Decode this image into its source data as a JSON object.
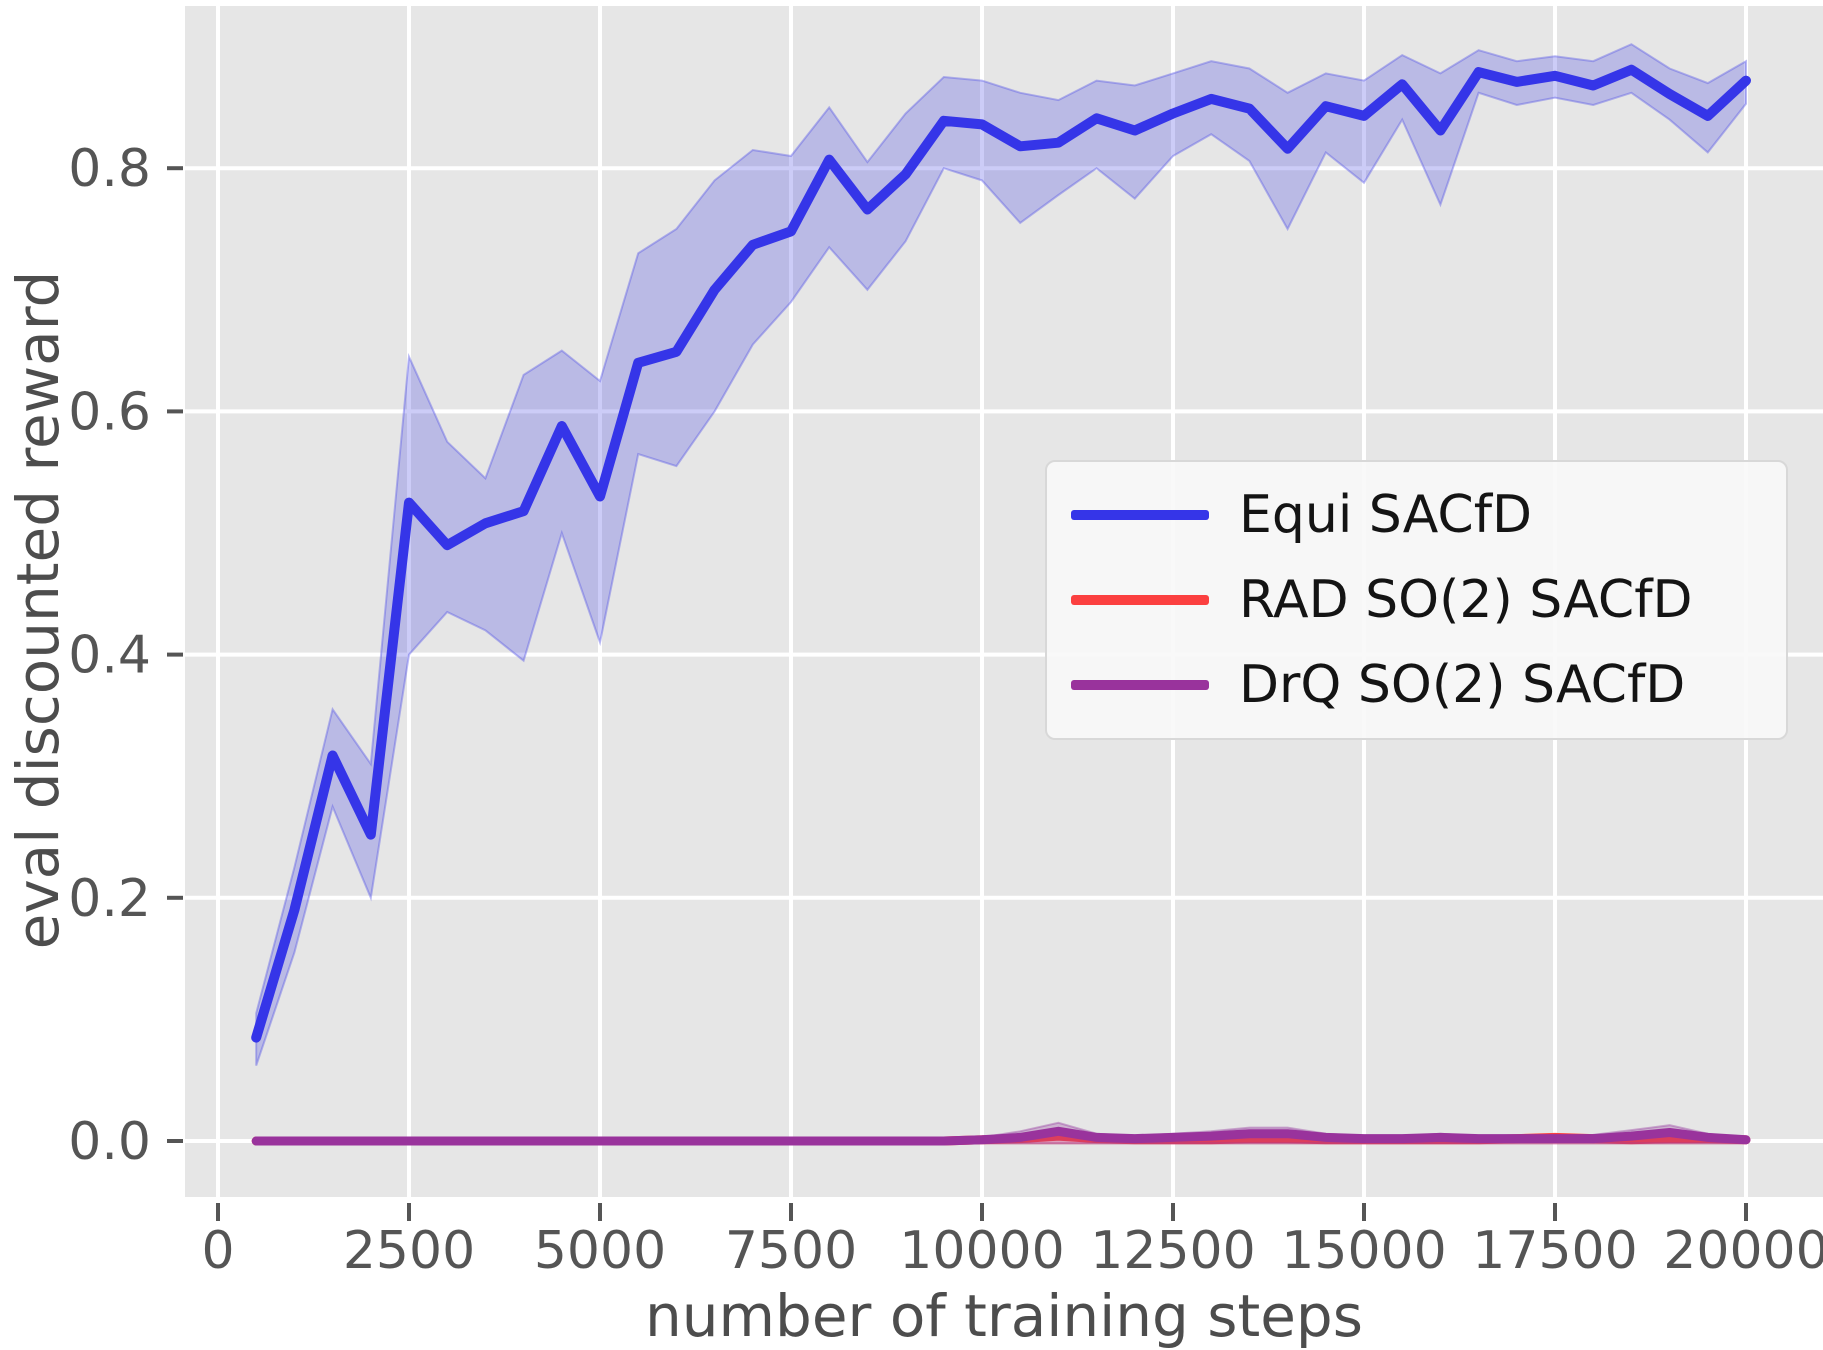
{
  "axes": {
    "xlabel": "number of training steps",
    "ylabel": "eval discounted reward",
    "xticks": {
      "values": [
        0,
        2500,
        5000,
        7500,
        10000,
        12500,
        15000,
        17500,
        20000
      ],
      "labels": [
        "0",
        "2500",
        "5000",
        "7500",
        "10000",
        "12500",
        "15000",
        "17500",
        "20000"
      ]
    },
    "yticks": {
      "values": [
        0.0,
        0.2,
        0.4,
        0.6,
        0.8
      ],
      "labels": [
        "0.0",
        "0.2",
        "0.4",
        "0.6",
        "0.8"
      ]
    }
  },
  "legend": {
    "items": [
      {
        "label": "Equi SACfD"
      },
      {
        "label": "RAD SO(2) SACfD"
      },
      {
        "label": "DrQ SO(2) SACfD"
      }
    ]
  },
  "colors": {
    "figure_bg": "#ffffff",
    "plot_bg": "#e6e6e6",
    "grid": "#ffffff",
    "tick": "#555555",
    "tick_label": "#555555",
    "axis_label": "#4d4d4d",
    "legend_bg": "#f9f9f9",
    "legend_border": "#d8d8d8",
    "legend_text": "#141414"
  },
  "chart_data": {
    "type": "line",
    "title": "",
    "xlabel": "number of training steps",
    "ylabel": "eval discounted reward",
    "xlim": [
      -430,
      21010
    ],
    "ylim": [
      -0.046,
      0.933
    ],
    "grid": true,
    "legend_position": "center-right",
    "x": [
      500,
      1000,
      1500,
      2000,
      2500,
      3000,
      3500,
      4000,
      4500,
      5000,
      5500,
      6000,
      6500,
      7000,
      7500,
      8000,
      8500,
      9000,
      9500,
      10000,
      10500,
      11000,
      11500,
      12000,
      12500,
      13000,
      13500,
      14000,
      14500,
      15000,
      15500,
      16000,
      16500,
      17000,
      17500,
      18000,
      18500,
      19000,
      19500,
      20000
    ],
    "series": [
      {
        "name": "Equi SACfD",
        "color": "#3535e8",
        "band_fill": "rgba(85,85,230,0.30)",
        "band_edge": "rgba(85,85,230,0.40)",
        "line_width": 10,
        "values": [
          0.085,
          0.19,
          0.317,
          0.252,
          0.525,
          0.49,
          0.508,
          0.518,
          0.588,
          0.53,
          0.64,
          0.649,
          0.7,
          0.737,
          0.748,
          0.807,
          0.766,
          0.795,
          0.839,
          0.836,
          0.818,
          0.821,
          0.841,
          0.831,
          0.845,
          0.857,
          0.849,
          0.816,
          0.851,
          0.843,
          0.869,
          0.831,
          0.879,
          0.871,
          0.876,
          0.868,
          0.881,
          0.861,
          0.843,
          0.872
        ],
        "band_low": [
          0.062,
          0.155,
          0.275,
          0.2,
          0.4,
          0.435,
          0.42,
          0.395,
          0.5,
          0.41,
          0.565,
          0.555,
          0.6,
          0.655,
          0.69,
          0.735,
          0.7,
          0.74,
          0.8,
          0.79,
          0.755,
          0.778,
          0.8,
          0.775,
          0.81,
          0.828,
          0.806,
          0.75,
          0.813,
          0.788,
          0.84,
          0.77,
          0.862,
          0.852,
          0.858,
          0.852,
          0.862,
          0.84,
          0.813,
          0.853
        ],
        "band_high": [
          0.105,
          0.225,
          0.355,
          0.31,
          0.645,
          0.575,
          0.545,
          0.63,
          0.65,
          0.625,
          0.73,
          0.75,
          0.79,
          0.815,
          0.81,
          0.85,
          0.805,
          0.845,
          0.875,
          0.872,
          0.862,
          0.856,
          0.872,
          0.868,
          0.878,
          0.888,
          0.882,
          0.862,
          0.878,
          0.872,
          0.893,
          0.878,
          0.897,
          0.888,
          0.892,
          0.888,
          0.902,
          0.882,
          0.87,
          0.888
        ]
      },
      {
        "name": "RAD SO(2) SACfD",
        "color": "#fb4040",
        "band_fill": "rgba(250,70,70,0.30)",
        "band_edge": "rgba(250,70,70,0.40)",
        "line_width": 9,
        "values": [
          0,
          0,
          0,
          0,
          0,
          0,
          0,
          0,
          0,
          0,
          0,
          0,
          0,
          0,
          0,
          0,
          0,
          0,
          0,
          0.001,
          0.002,
          0.004,
          0.002,
          0.001,
          0.001,
          0.001,
          0.002,
          0.002,
          0.001,
          0.001,
          0.001,
          0.001,
          0.001,
          0.002,
          0.003,
          0.002,
          0.001,
          0.002,
          0.002,
          0.001
        ],
        "band_low": [
          -0.002,
          -0.002,
          -0.002,
          -0.002,
          -0.002,
          -0.002,
          -0.002,
          -0.002,
          -0.002,
          -0.002,
          -0.002,
          -0.002,
          -0.002,
          -0.002,
          -0.002,
          -0.002,
          -0.002,
          -0.002,
          -0.002,
          -0.002,
          -0.002,
          -0.002,
          -0.002,
          -0.002,
          -0.002,
          -0.002,
          -0.002,
          -0.002,
          -0.002,
          -0.002,
          -0.002,
          -0.002,
          -0.002,
          -0.002,
          -0.002,
          -0.002,
          -0.002,
          -0.002,
          -0.002,
          -0.002
        ],
        "band_high": [
          0.002,
          0.002,
          0.002,
          0.002,
          0.002,
          0.002,
          0.002,
          0.002,
          0.002,
          0.002,
          0.002,
          0.002,
          0.002,
          0.002,
          0.002,
          0.002,
          0.002,
          0.002,
          0.002,
          0.003,
          0.004,
          0.007,
          0.004,
          0.003,
          0.003,
          0.003,
          0.004,
          0.004,
          0.003,
          0.003,
          0.003,
          0.003,
          0.003,
          0.004,
          0.005,
          0.004,
          0.003,
          0.004,
          0.005,
          0.003
        ]
      },
      {
        "name": "DrQ SO(2) SACfD",
        "color": "#99339c",
        "band_fill": "rgba(150,60,160,0.30)",
        "band_edge": "rgba(150,60,160,0.40)",
        "line_width": 9,
        "values": [
          0,
          0,
          0,
          0,
          0,
          0,
          0,
          0,
          0,
          0,
          0,
          0,
          0,
          0,
          0,
          0,
          0,
          0,
          0,
          0.001,
          0.003,
          0.008,
          0.003,
          0.002,
          0.003,
          0.004,
          0.006,
          0.006,
          0.003,
          0.002,
          0.002,
          0.003,
          0.002,
          0.002,
          0.002,
          0.002,
          0.004,
          0.007,
          0.003,
          0.001
        ],
        "band_low": [
          -0.002,
          -0.002,
          -0.002,
          -0.002,
          -0.002,
          -0.002,
          -0.002,
          -0.002,
          -0.002,
          -0.002,
          -0.002,
          -0.002,
          -0.002,
          -0.002,
          -0.002,
          -0.002,
          -0.002,
          -0.002,
          -0.002,
          -0.002,
          -0.002,
          -0.002,
          -0.002,
          -0.002,
          -0.002,
          -0.002,
          -0.002,
          -0.002,
          -0.002,
          -0.002,
          -0.002,
          -0.002,
          -0.002,
          -0.002,
          -0.002,
          -0.002,
          -0.002,
          -0.002,
          -0.002,
          -0.002
        ],
        "band_high": [
          0.002,
          0.002,
          0.002,
          0.002,
          0.002,
          0.002,
          0.002,
          0.002,
          0.002,
          0.002,
          0.002,
          0.002,
          0.002,
          0.002,
          0.002,
          0.002,
          0.002,
          0.002,
          0.002,
          0.003,
          0.008,
          0.015,
          0.006,
          0.004,
          0.006,
          0.008,
          0.011,
          0.011,
          0.006,
          0.004,
          0.004,
          0.006,
          0.004,
          0.004,
          0.004,
          0.005,
          0.009,
          0.013,
          0.006,
          0.002
        ]
      }
    ]
  }
}
